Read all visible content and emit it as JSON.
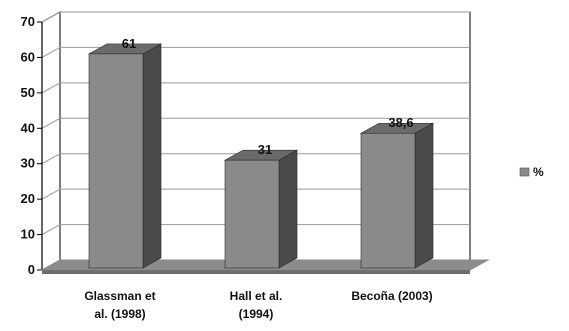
{
  "chart_data": {
    "type": "bar",
    "categories": [
      "Glassman et al. (1998)",
      "Hall et al. (1994)",
      "Becoña (2003)"
    ],
    "category_lines": [
      [
        "Glassman et",
        "al. (1998)"
      ],
      [
        "Hall et al.",
        "(1994)"
      ],
      [
        "Becoña (2003)"
      ]
    ],
    "series": [
      {
        "name": "%",
        "values": [
          61,
          31,
          38.6
        ]
      }
    ],
    "data_labels": [
      "61",
      "31",
      "38,6"
    ],
    "ylim": [
      0,
      70
    ],
    "yticks": [
      0,
      10,
      20,
      30,
      40,
      50,
      60,
      70
    ],
    "grid": true,
    "legend_position": "right",
    "colors": {
      "bar_front": "#8a8a8a",
      "bar_side": "#4a4a4a",
      "bar_top": "#6a6a6a",
      "floor": "#8c8c8c",
      "grid": "#9a9a9a",
      "frame": "#000000",
      "left_wall": "#9a9a9a"
    }
  }
}
